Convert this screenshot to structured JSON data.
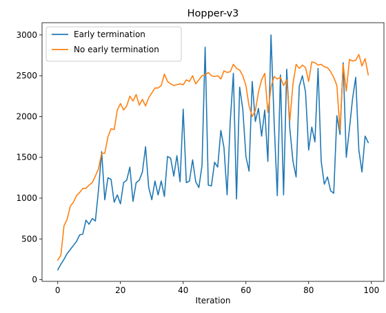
{
  "chart_data": {
    "type": "line",
    "title": "Hopper-v3",
    "xlabel": "Iteration",
    "ylabel": "",
    "xlim": [
      -5,
      104
    ],
    "ylim": [
      -20,
      3150
    ],
    "x_ticks": [
      0,
      20,
      40,
      60,
      80,
      100
    ],
    "y_ticks": [
      0,
      500,
      1000,
      1500,
      2000,
      2500,
      3000
    ],
    "grid": false,
    "legend_position": "top-left",
    "series": [
      {
        "name": "Early termination",
        "color": "#1f77b4",
        "x": [
          0,
          1,
          2,
          3,
          4,
          5,
          6,
          7,
          8,
          9,
          10,
          11,
          12,
          13,
          14,
          15,
          16,
          17,
          18,
          19,
          20,
          21,
          22,
          23,
          24,
          25,
          26,
          27,
          28,
          29,
          30,
          31,
          32,
          33,
          34,
          35,
          36,
          37,
          38,
          39,
          40,
          41,
          42,
          43,
          44,
          45,
          46,
          47,
          48,
          49,
          50,
          51,
          52,
          53,
          54,
          55,
          56,
          57,
          58,
          59,
          60,
          61,
          62,
          63,
          64,
          65,
          66,
          67,
          68,
          69,
          70,
          71,
          72,
          73,
          74,
          75,
          76,
          77,
          78,
          79,
          80,
          81,
          82,
          83,
          84,
          85,
          86,
          87,
          88,
          89,
          90,
          91,
          92,
          93,
          94,
          95,
          96,
          97,
          98,
          99
        ],
        "values": [
          120,
          190,
          250,
          320,
          370,
          420,
          470,
          550,
          560,
          730,
          680,
          750,
          720,
          1100,
          1570,
          980,
          1250,
          1230,
          950,
          1040,
          930,
          1190,
          1220,
          1380,
          960,
          1190,
          1220,
          1320,
          1630,
          1130,
          980,
          1210,
          1040,
          1210,
          1020,
          1510,
          1490,
          1270,
          1520,
          1200,
          2090,
          1190,
          1210,
          1470,
          1200,
          1130,
          1400,
          2850,
          1160,
          1150,
          1440,
          1380,
          1830,
          1620,
          1040,
          1940,
          2530,
          990,
          2360,
          2090,
          1510,
          1330,
          2430,
          1940,
          2100,
          1760,
          2080,
          1450,
          3000,
          1930,
          1030,
          2510,
          1040,
          2580,
          1850,
          1450,
          1260,
          2370,
          2500,
          2300,
          1590,
          1870,
          1690,
          2590,
          1450,
          1170,
          1260,
          1090,
          1060,
          2010,
          1780,
          2660,
          1500,
          1850,
          2220,
          2480,
          1590,
          1320,
          1760,
          1680
        ]
      },
      {
        "name": "No early termination",
        "color": "#ff7f0e",
        "x": [
          0,
          1,
          2,
          3,
          4,
          5,
          6,
          7,
          8,
          9,
          10,
          11,
          12,
          13,
          14,
          15,
          16,
          17,
          18,
          19,
          20,
          21,
          22,
          23,
          24,
          25,
          26,
          27,
          28,
          29,
          30,
          31,
          32,
          33,
          34,
          35,
          36,
          37,
          38,
          39,
          40,
          41,
          42,
          43,
          44,
          45,
          46,
          47,
          48,
          49,
          50,
          51,
          52,
          53,
          54,
          55,
          56,
          57,
          58,
          59,
          60,
          61,
          62,
          63,
          64,
          65,
          66,
          67,
          68,
          69,
          70,
          71,
          72,
          73,
          74,
          75,
          76,
          77,
          78,
          79,
          80,
          81,
          82,
          83,
          84,
          85,
          86,
          87,
          88,
          89,
          90,
          91,
          92,
          93,
          94,
          95,
          96,
          97,
          98,
          99
        ],
        "values": [
          240,
          300,
          660,
          740,
          900,
          950,
          1030,
          1070,
          1120,
          1120,
          1160,
          1190,
          1270,
          1360,
          1550,
          1550,
          1750,
          1850,
          1840,
          2080,
          2160,
          2080,
          2130,
          2250,
          2190,
          2270,
          2140,
          2210,
          2130,
          2230,
          2290,
          2350,
          2350,
          2380,
          2520,
          2430,
          2400,
          2380,
          2390,
          2400,
          2390,
          2450,
          2430,
          2500,
          2400,
          2450,
          2500,
          2510,
          2540,
          2500,
          2490,
          2500,
          2460,
          2560,
          2540,
          2550,
          2640,
          2590,
          2570,
          2500,
          2380,
          2130,
          2000,
          2070,
          2300,
          2450,
          2530,
          2050,
          2360,
          2490,
          2460,
          2480,
          2380,
          2450,
          1950,
          2400,
          2640,
          2590,
          2630,
          2600,
          2430,
          2670,
          2660,
          2630,
          2640,
          2610,
          2600,
          2550,
          2480,
          2380,
          1830,
          2640,
          2310,
          2700,
          2680,
          2690,
          2760,
          2620,
          2710,
          2510
        ]
      }
    ]
  }
}
